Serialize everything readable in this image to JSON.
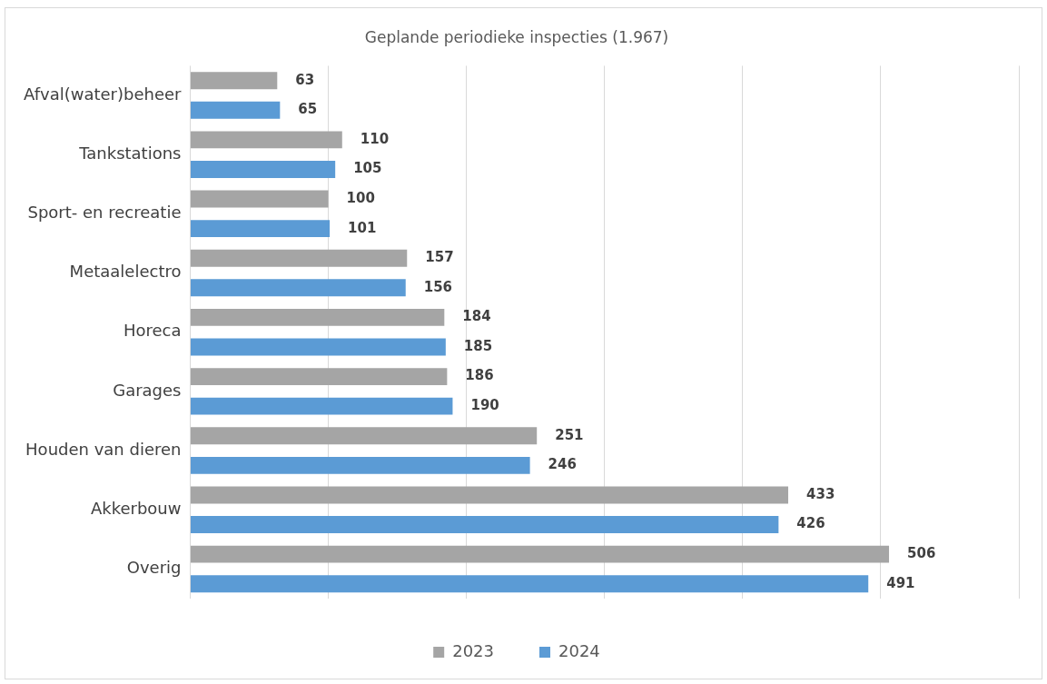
{
  "chart_data": {
    "type": "bar",
    "orientation": "horizontal",
    "title": "Geplande periodieke inspecties (1.967)",
    "categories": [
      "Afval(water)beheer",
      "Tankstations",
      "Sport- en recreatie",
      "Metaalelectro",
      "Horeca",
      "Garages",
      "Houden van dieren",
      "Akkerbouw",
      "Overig"
    ],
    "series": [
      {
        "name": "2023",
        "color": "#a5a5a5",
        "values": [
          63,
          110,
          100,
          157,
          184,
          186,
          251,
          433,
          506
        ]
      },
      {
        "name": "2024",
        "color": "#5b9bd5",
        "values": [
          65,
          105,
          101,
          156,
          185,
          190,
          246,
          426,
          491
        ]
      }
    ],
    "xlim": [
      0,
      600
    ],
    "xticks": [
      {
        "value": 0,
        "label": null
      },
      {
        "value": 100,
        "label": null
      },
      {
        "value": 200,
        "label": null
      },
      {
        "value": 300,
        "label": null
      },
      {
        "value": 400,
        "label": null
      },
      {
        "value": 500,
        "label": null
      },
      {
        "value": 600,
        "label": null
      }
    ],
    "grid": "x",
    "legend": "bottom",
    "tick_labels": "y",
    "data_labels": true
  }
}
